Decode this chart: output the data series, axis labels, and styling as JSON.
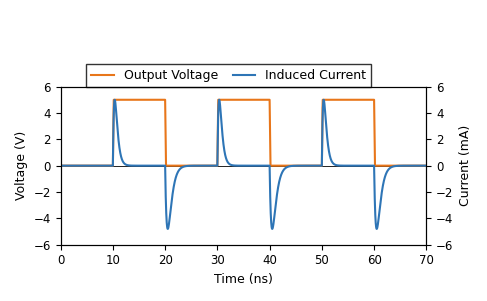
{
  "title": "",
  "xlabel": "Time (ns)",
  "ylabel_left": "Voltage (V)",
  "ylabel_right": "Current (mA)",
  "xlim": [
    0,
    70
  ],
  "ylim": [
    -6,
    6
  ],
  "legend_labels": [
    "Output Voltage",
    "Induced Current"
  ],
  "voltage_color": "#E8761A",
  "current_color": "#2E75B6",
  "background_color": "#ffffff",
  "xticks": [
    0,
    10,
    20,
    30,
    40,
    50,
    60,
    70
  ],
  "yticks": [
    -6,
    -4,
    -2,
    0,
    2,
    4,
    6
  ],
  "voltage_amplitude": 5.0,
  "current_peak": 5.0,
  "current_trough": -4.8,
  "periods": [
    {
      "rise": 10,
      "fall": 20
    },
    {
      "rise": 30,
      "fall": 40
    },
    {
      "rise": 50,
      "fall": 60
    }
  ]
}
